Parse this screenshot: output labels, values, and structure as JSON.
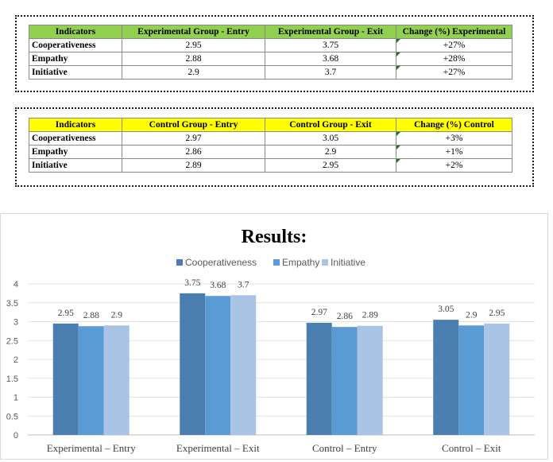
{
  "colors": {
    "experimental_header": "#92d050",
    "control_header": "#ffff00",
    "series": [
      "#4a7eb0",
      "#5b9bd5",
      "#a9c4e4"
    ]
  },
  "table_experimental": {
    "headers": [
      "Indicators",
      "Experimental Group - Entry",
      "Experimental Group - Exit",
      "Change (%) Experimental"
    ],
    "rows": [
      [
        "Cooperativeness",
        "2.95",
        "3.75",
        "+27%"
      ],
      [
        "Empathy",
        "2.88",
        "3.68",
        "+28%"
      ],
      [
        "Initiative",
        "2.9",
        "3.7",
        "+27%"
      ]
    ]
  },
  "table_control": {
    "headers": [
      "Indicators",
      "Control Group - Entry",
      "Control Group - Exit",
      "Change (%) Control"
    ],
    "rows": [
      [
        "Cooperativeness",
        "2.97",
        "3.05",
        "+3%"
      ],
      [
        "Empathy",
        "2.86",
        "2.9",
        "+1%"
      ],
      [
        "Initiative",
        "2.89",
        "2.95",
        "+2%"
      ]
    ]
  },
  "chart_data": {
    "type": "bar",
    "title": "Results:",
    "categories": [
      "Experimental – Entry",
      "Experimental – Exit",
      "Control – Entry",
      "Control – Exit"
    ],
    "series": [
      {
        "name": "Cooperativeness",
        "values": [
          2.95,
          3.75,
          2.97,
          3.05
        ],
        "labels": [
          "2.95",
          "3.75",
          "2.97",
          "3.05"
        ]
      },
      {
        "name": "Empathy",
        "values": [
          2.88,
          3.68,
          2.86,
          2.9
        ],
        "labels": [
          "2.88",
          "3.68",
          "2.86",
          "2.9"
        ]
      },
      {
        "name": "Initiative",
        "values": [
          2.9,
          3.7,
          2.89,
          2.95
        ],
        "labels": [
          "2.9",
          "3.7",
          "2.89",
          "2.95"
        ]
      }
    ],
    "yticks": [
      "0",
      "0.5",
      "1",
      "1.5",
      "2",
      "2.5",
      "3",
      "3.5",
      "4"
    ],
    "ylim": [
      0,
      4
    ],
    "legend": "top",
    "grid": true
  }
}
